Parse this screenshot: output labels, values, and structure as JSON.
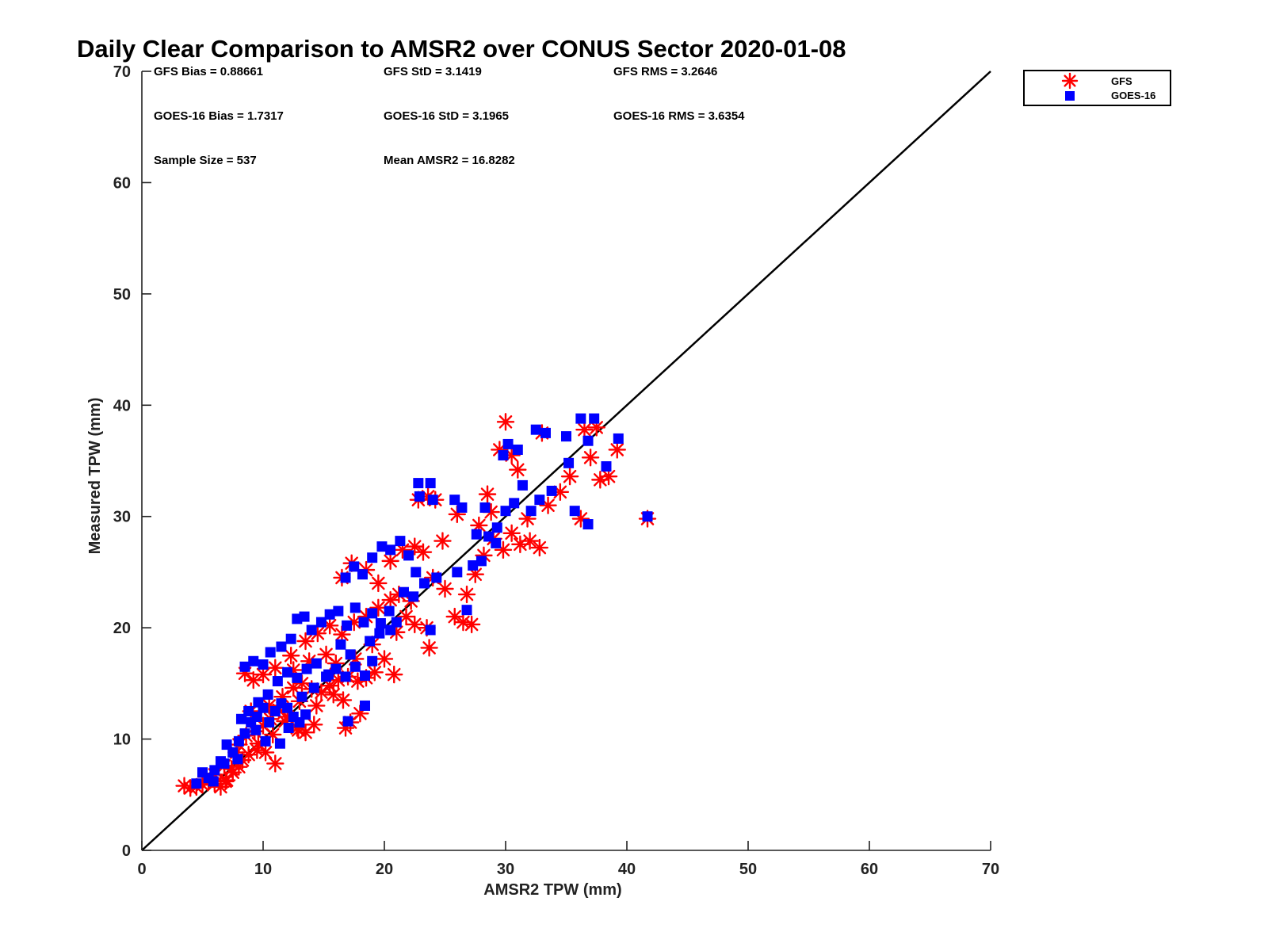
{
  "chart_data": {
    "type": "scatter",
    "title": "Daily Clear Comparison to AMSR2 over CONUS Sector 2020-01-08",
    "xlabel": "AMSR2 TPW (mm)",
    "ylabel": "Measured TPW (mm)",
    "xlim": [
      0,
      70
    ],
    "ylim": [
      0,
      70
    ],
    "xticks": [
      0,
      10,
      20,
      30,
      40,
      50,
      60,
      70
    ],
    "yticks": [
      0,
      10,
      20,
      30,
      40,
      50,
      60,
      70
    ],
    "grid": false,
    "legend_position": "top-right-outside",
    "reference_line": {
      "x": [
        0,
        70
      ],
      "y": [
        0,
        70
      ],
      "color": "#000000"
    },
    "stats": [
      "GFS Bias = 0.88661",
      "GFS StD = 3.1419",
      "GFS RMS = 3.2646",
      "GOES-16 Bias = 1.7317",
      "GOES-16 StD = 3.1965",
      "GOES-16 RMS = 3.6354",
      "Sample Size = 537",
      "Mean AMSR2 = 16.8282"
    ],
    "series": [
      {
        "name": "GFS",
        "marker": "asterisk",
        "color": "#ff0000",
        "points": [
          [
            3.5,
            5.8
          ],
          [
            4.0,
            5.6
          ],
          [
            4.5,
            5.7
          ],
          [
            5.0,
            5.9
          ],
          [
            5.5,
            6.2
          ],
          [
            6.0,
            6.0
          ],
          [
            6.5,
            5.7
          ],
          [
            7.0,
            6.3
          ],
          [
            7.5,
            7.0
          ],
          [
            8.0,
            7.5
          ],
          [
            6.0,
            6.8
          ],
          [
            6.8,
            7.6
          ],
          [
            7.4,
            7.3
          ],
          [
            8.3,
            8.1
          ],
          [
            8.8,
            8.6
          ],
          [
            9.5,
            9.0
          ],
          [
            10.2,
            8.8
          ],
          [
            11.0,
            7.8
          ],
          [
            8.0,
            9.5
          ],
          [
            8.6,
            10.3
          ],
          [
            9.3,
            10.7
          ],
          [
            10.0,
            11.2
          ],
          [
            10.6,
            11.8
          ],
          [
            11.3,
            12.6
          ],
          [
            12.0,
            12.0
          ],
          [
            12.8,
            11.0
          ],
          [
            13.5,
            10.6
          ],
          [
            14.2,
            11.3
          ],
          [
            9.0,
            12.5
          ],
          [
            10.5,
            13.0
          ],
          [
            11.6,
            13.8
          ],
          [
            12.5,
            14.6
          ],
          [
            13.2,
            15.0
          ],
          [
            14.0,
            14.5
          ],
          [
            14.8,
            14.2
          ],
          [
            15.5,
            14.8
          ],
          [
            16.2,
            15.3
          ],
          [
            17.0,
            15.6
          ],
          [
            17.8,
            15.2
          ],
          [
            18.5,
            15.5
          ],
          [
            19.2,
            16.0
          ],
          [
            20.0,
            17.2
          ],
          [
            20.8,
            15.8
          ],
          [
            16.6,
            13.5
          ],
          [
            16.8,
            11.0
          ],
          [
            17.2,
            11.5
          ],
          [
            18.0,
            12.3
          ],
          [
            8.5,
            15.9
          ],
          [
            9.2,
            15.3
          ],
          [
            10.0,
            15.8
          ],
          [
            11.0,
            16.4
          ],
          [
            12.3,
            17.5
          ],
          [
            13.5,
            18.8
          ],
          [
            14.5,
            19.5
          ],
          [
            15.5,
            20.2
          ],
          [
            16.5,
            19.4
          ],
          [
            17.5,
            20.5
          ],
          [
            18.5,
            21.0
          ],
          [
            19.5,
            21.8
          ],
          [
            20.5,
            22.5
          ],
          [
            21.2,
            23.0
          ],
          [
            21.8,
            21.0
          ],
          [
            22.5,
            20.3
          ],
          [
            23.5,
            20.0
          ],
          [
            23.7,
            18.2
          ],
          [
            16.5,
            24.5
          ],
          [
            17.3,
            25.8
          ],
          [
            18.5,
            25.2
          ],
          [
            19.5,
            24.0
          ],
          [
            20.5,
            26.0
          ],
          [
            21.5,
            27.0
          ],
          [
            22.5,
            27.3
          ],
          [
            23.2,
            26.8
          ],
          [
            24.0,
            24.5
          ],
          [
            24.8,
            27.8
          ],
          [
            22.8,
            31.5
          ],
          [
            23.6,
            31.8
          ],
          [
            24.2,
            31.5
          ],
          [
            25.0,
            23.5
          ],
          [
            25.8,
            21.0
          ],
          [
            26.5,
            20.5
          ],
          [
            27.2,
            20.3
          ],
          [
            26.8,
            23.0
          ],
          [
            27.5,
            24.8
          ],
          [
            28.2,
            26.5
          ],
          [
            29.0,
            28.0
          ],
          [
            29.8,
            27.0
          ],
          [
            30.5,
            28.5
          ],
          [
            31.2,
            27.5
          ],
          [
            32.0,
            27.8
          ],
          [
            32.8,
            27.2
          ],
          [
            31.8,
            29.8
          ],
          [
            33.5,
            31.0
          ],
          [
            34.5,
            32.2
          ],
          [
            35.3,
            33.6
          ],
          [
            36.2,
            29.8
          ],
          [
            37.0,
            35.3
          ],
          [
            37.8,
            33.3
          ],
          [
            38.5,
            33.6
          ],
          [
            39.2,
            36.0
          ],
          [
            36.5,
            37.8
          ],
          [
            37.5,
            38.0
          ],
          [
            33.0,
            37.5
          ],
          [
            30.0,
            38.5
          ],
          [
            29.5,
            36.0
          ],
          [
            30.5,
            35.5
          ],
          [
            31.0,
            34.2
          ],
          [
            28.5,
            32.0
          ],
          [
            41.7,
            29.8
          ],
          [
            26.0,
            30.2
          ],
          [
            12.5,
            16.2
          ],
          [
            13.8,
            17.0
          ],
          [
            15.2,
            17.6
          ],
          [
            16.0,
            16.8
          ],
          [
            17.6,
            17.2
          ],
          [
            14.4,
            13.0
          ],
          [
            15.8,
            14.0
          ],
          [
            13.0,
            13.4
          ],
          [
            11.8,
            11.6
          ],
          [
            12.9,
            10.8
          ],
          [
            10.8,
            10.4
          ],
          [
            9.6,
            9.6
          ],
          [
            7.8,
            8.8
          ],
          [
            6.9,
            6.2
          ],
          [
            5.3,
            6.6
          ],
          [
            27.8,
            29.2
          ],
          [
            28.8,
            30.4
          ],
          [
            19.0,
            18.5
          ],
          [
            21.0,
            19.6
          ],
          [
            22.2,
            22.4
          ]
        ]
      },
      {
        "name": "GOES-16",
        "marker": "square",
        "color": "#0000ff",
        "points": [
          [
            4.5,
            6.0
          ],
          [
            5.0,
            7.0
          ],
          [
            5.5,
            6.5
          ],
          [
            6.0,
            7.2
          ],
          [
            6.5,
            8.0
          ],
          [
            7.0,
            9.5
          ],
          [
            7.5,
            8.8
          ],
          [
            8.0,
            9.8
          ],
          [
            8.5,
            10.5
          ],
          [
            9.0,
            11.5
          ],
          [
            9.5,
            12.0
          ],
          [
            10.0,
            12.8
          ],
          [
            10.5,
            11.5
          ],
          [
            11.0,
            12.5
          ],
          [
            11.5,
            13.2
          ],
          [
            12.0,
            12.8
          ],
          [
            12.5,
            12.0
          ],
          [
            13.0,
            11.5
          ],
          [
            13.5,
            12.2
          ],
          [
            8.2,
            11.8
          ],
          [
            8.8,
            12.5
          ],
          [
            9.6,
            13.3
          ],
          [
            10.4,
            14.0
          ],
          [
            11.2,
            15.2
          ],
          [
            12.0,
            16.0
          ],
          [
            12.8,
            15.5
          ],
          [
            13.6,
            16.3
          ],
          [
            14.4,
            16.8
          ],
          [
            15.2,
            15.6
          ],
          [
            16.0,
            16.3
          ],
          [
            16.8,
            15.6
          ],
          [
            17.6,
            16.5
          ],
          [
            18.4,
            15.7
          ],
          [
            19.0,
            17.0
          ],
          [
            8.5,
            16.5
          ],
          [
            9.2,
            17.0
          ],
          [
            10.0,
            16.7
          ],
          [
            10.6,
            17.8
          ],
          [
            11.5,
            18.3
          ],
          [
            12.3,
            19.0
          ],
          [
            12.8,
            20.8
          ],
          [
            13.4,
            21.0
          ],
          [
            14.0,
            19.8
          ],
          [
            14.8,
            20.5
          ],
          [
            15.5,
            21.2
          ],
          [
            16.2,
            21.5
          ],
          [
            16.9,
            20.2
          ],
          [
            17.6,
            21.8
          ],
          [
            18.3,
            20.5
          ],
          [
            19.0,
            21.3
          ],
          [
            19.7,
            20.4
          ],
          [
            20.5,
            19.8
          ],
          [
            21.0,
            20.5
          ],
          [
            17.0,
            11.6
          ],
          [
            18.4,
            13.0
          ],
          [
            16.8,
            24.5
          ],
          [
            17.5,
            25.5
          ],
          [
            18.2,
            24.8
          ],
          [
            19.0,
            26.3
          ],
          [
            19.8,
            27.3
          ],
          [
            20.5,
            27.0
          ],
          [
            21.3,
            27.8
          ],
          [
            22.0,
            26.5
          ],
          [
            22.6,
            25.0
          ],
          [
            23.3,
            24.0
          ],
          [
            23.8,
            19.8
          ],
          [
            24.3,
            24.5
          ],
          [
            22.8,
            33.0
          ],
          [
            23.8,
            33.0
          ],
          [
            22.9,
            31.8
          ],
          [
            24.0,
            31.5
          ],
          [
            25.8,
            31.5
          ],
          [
            26.4,
            30.8
          ],
          [
            26.0,
            25.0
          ],
          [
            26.8,
            21.6
          ],
          [
            27.3,
            25.6
          ],
          [
            28.0,
            26.0
          ],
          [
            28.6,
            28.2
          ],
          [
            29.3,
            29.0
          ],
          [
            30.0,
            30.5
          ],
          [
            30.7,
            31.2
          ],
          [
            31.4,
            32.8
          ],
          [
            32.1,
            30.5
          ],
          [
            32.8,
            31.5
          ],
          [
            30.2,
            36.5
          ],
          [
            29.8,
            35.5
          ],
          [
            31.0,
            36.0
          ],
          [
            32.5,
            37.8
          ],
          [
            33.3,
            37.5
          ],
          [
            35.0,
            37.2
          ],
          [
            36.2,
            38.8
          ],
          [
            37.3,
            38.8
          ],
          [
            36.8,
            36.8
          ],
          [
            38.3,
            34.5
          ],
          [
            39.3,
            37.0
          ],
          [
            35.7,
            30.5
          ],
          [
            36.8,
            29.3
          ],
          [
            41.7,
            30.0
          ],
          [
            35.2,
            34.8
          ],
          [
            33.8,
            32.3
          ],
          [
            27.6,
            28.4
          ],
          [
            28.3,
            30.8
          ],
          [
            29.2,
            27.6
          ],
          [
            14.2,
            14.6
          ],
          [
            15.4,
            15.8
          ],
          [
            13.2,
            13.8
          ],
          [
            12.1,
            11.0
          ],
          [
            11.4,
            9.6
          ],
          [
            10.2,
            9.8
          ],
          [
            9.4,
            10.8
          ],
          [
            7.9,
            8.2
          ],
          [
            6.8,
            7.8
          ],
          [
            5.9,
            6.2
          ],
          [
            18.8,
            18.8
          ],
          [
            19.6,
            19.5
          ],
          [
            20.4,
            21.5
          ],
          [
            21.6,
            23.2
          ],
          [
            22.4,
            22.8
          ],
          [
            17.2,
            17.6
          ],
          [
            16.4,
            18.5
          ]
        ]
      }
    ]
  }
}
